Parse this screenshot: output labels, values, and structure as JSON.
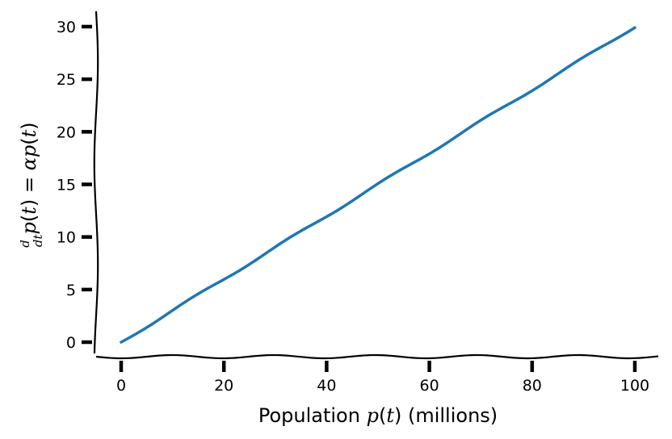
{
  "chart_data": {
    "type": "line",
    "xlabel": "Population p(t) (millions)",
    "ylabel": "d/dt p(t) = αp(t)",
    "xlim": [
      -5,
      105
    ],
    "ylim": [
      -1.2,
      31.5
    ],
    "x_ticks": [
      0,
      20,
      40,
      60,
      80,
      100
    ],
    "y_ticks": [
      0,
      5,
      10,
      15,
      20,
      25,
      30
    ],
    "grid": false,
    "series": [
      {
        "color": "#1f77b4",
        "x": [
          0,
          5,
          10,
          15,
          20,
          25,
          30,
          35,
          40,
          45,
          50,
          55,
          60,
          65,
          70,
          75,
          80,
          85,
          90,
          95,
          100
        ],
        "y": [
          0,
          1.5,
          3.0,
          4.5,
          6.0,
          7.5,
          9.0,
          10.5,
          12.0,
          13.5,
          15.0,
          16.5,
          18.0,
          19.5,
          21.0,
          22.5,
          24.0,
          25.5,
          27.0,
          28.5,
          30.0
        ]
      }
    ]
  }
}
